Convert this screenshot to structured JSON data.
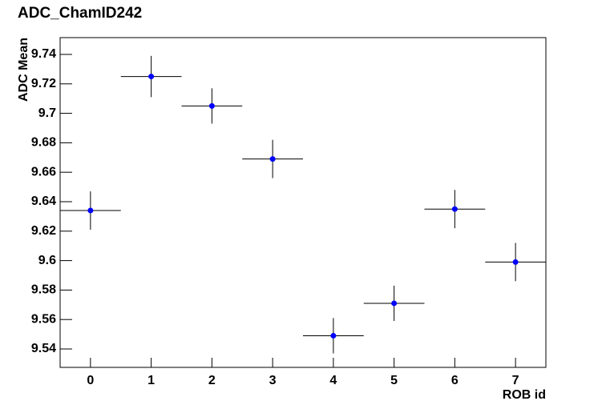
{
  "chart_data": {
    "type": "errorbar",
    "title": "ADC_ChamID242",
    "x_label": "ROB id",
    "y_label": "ADC Mean",
    "x": [
      0,
      1,
      2,
      3,
      4,
      5,
      6,
      7
    ],
    "values": [
      9.634,
      9.725,
      9.705,
      9.669,
      9.549,
      9.571,
      9.635,
      9.599
    ],
    "yerr": [
      0.013,
      0.014,
      0.012,
      0.013,
      0.012,
      0.012,
      0.013,
      0.013
    ],
    "xerr": [
      0.5,
      0.5,
      0.5,
      0.5,
      0.5,
      0.5,
      0.5,
      0.5
    ],
    "color": "#0000ff",
    "xlim": [
      -0.5,
      7.5
    ],
    "ylim": [
      9.5275,
      9.7514
    ],
    "xticks": [
      0,
      1,
      2,
      3,
      4,
      5,
      6,
      7
    ],
    "yticks": [
      9.54,
      9.56,
      9.58,
      9.6,
      9.62,
      9.64,
      9.66,
      9.68,
      9.7,
      9.72,
      9.74
    ]
  }
}
